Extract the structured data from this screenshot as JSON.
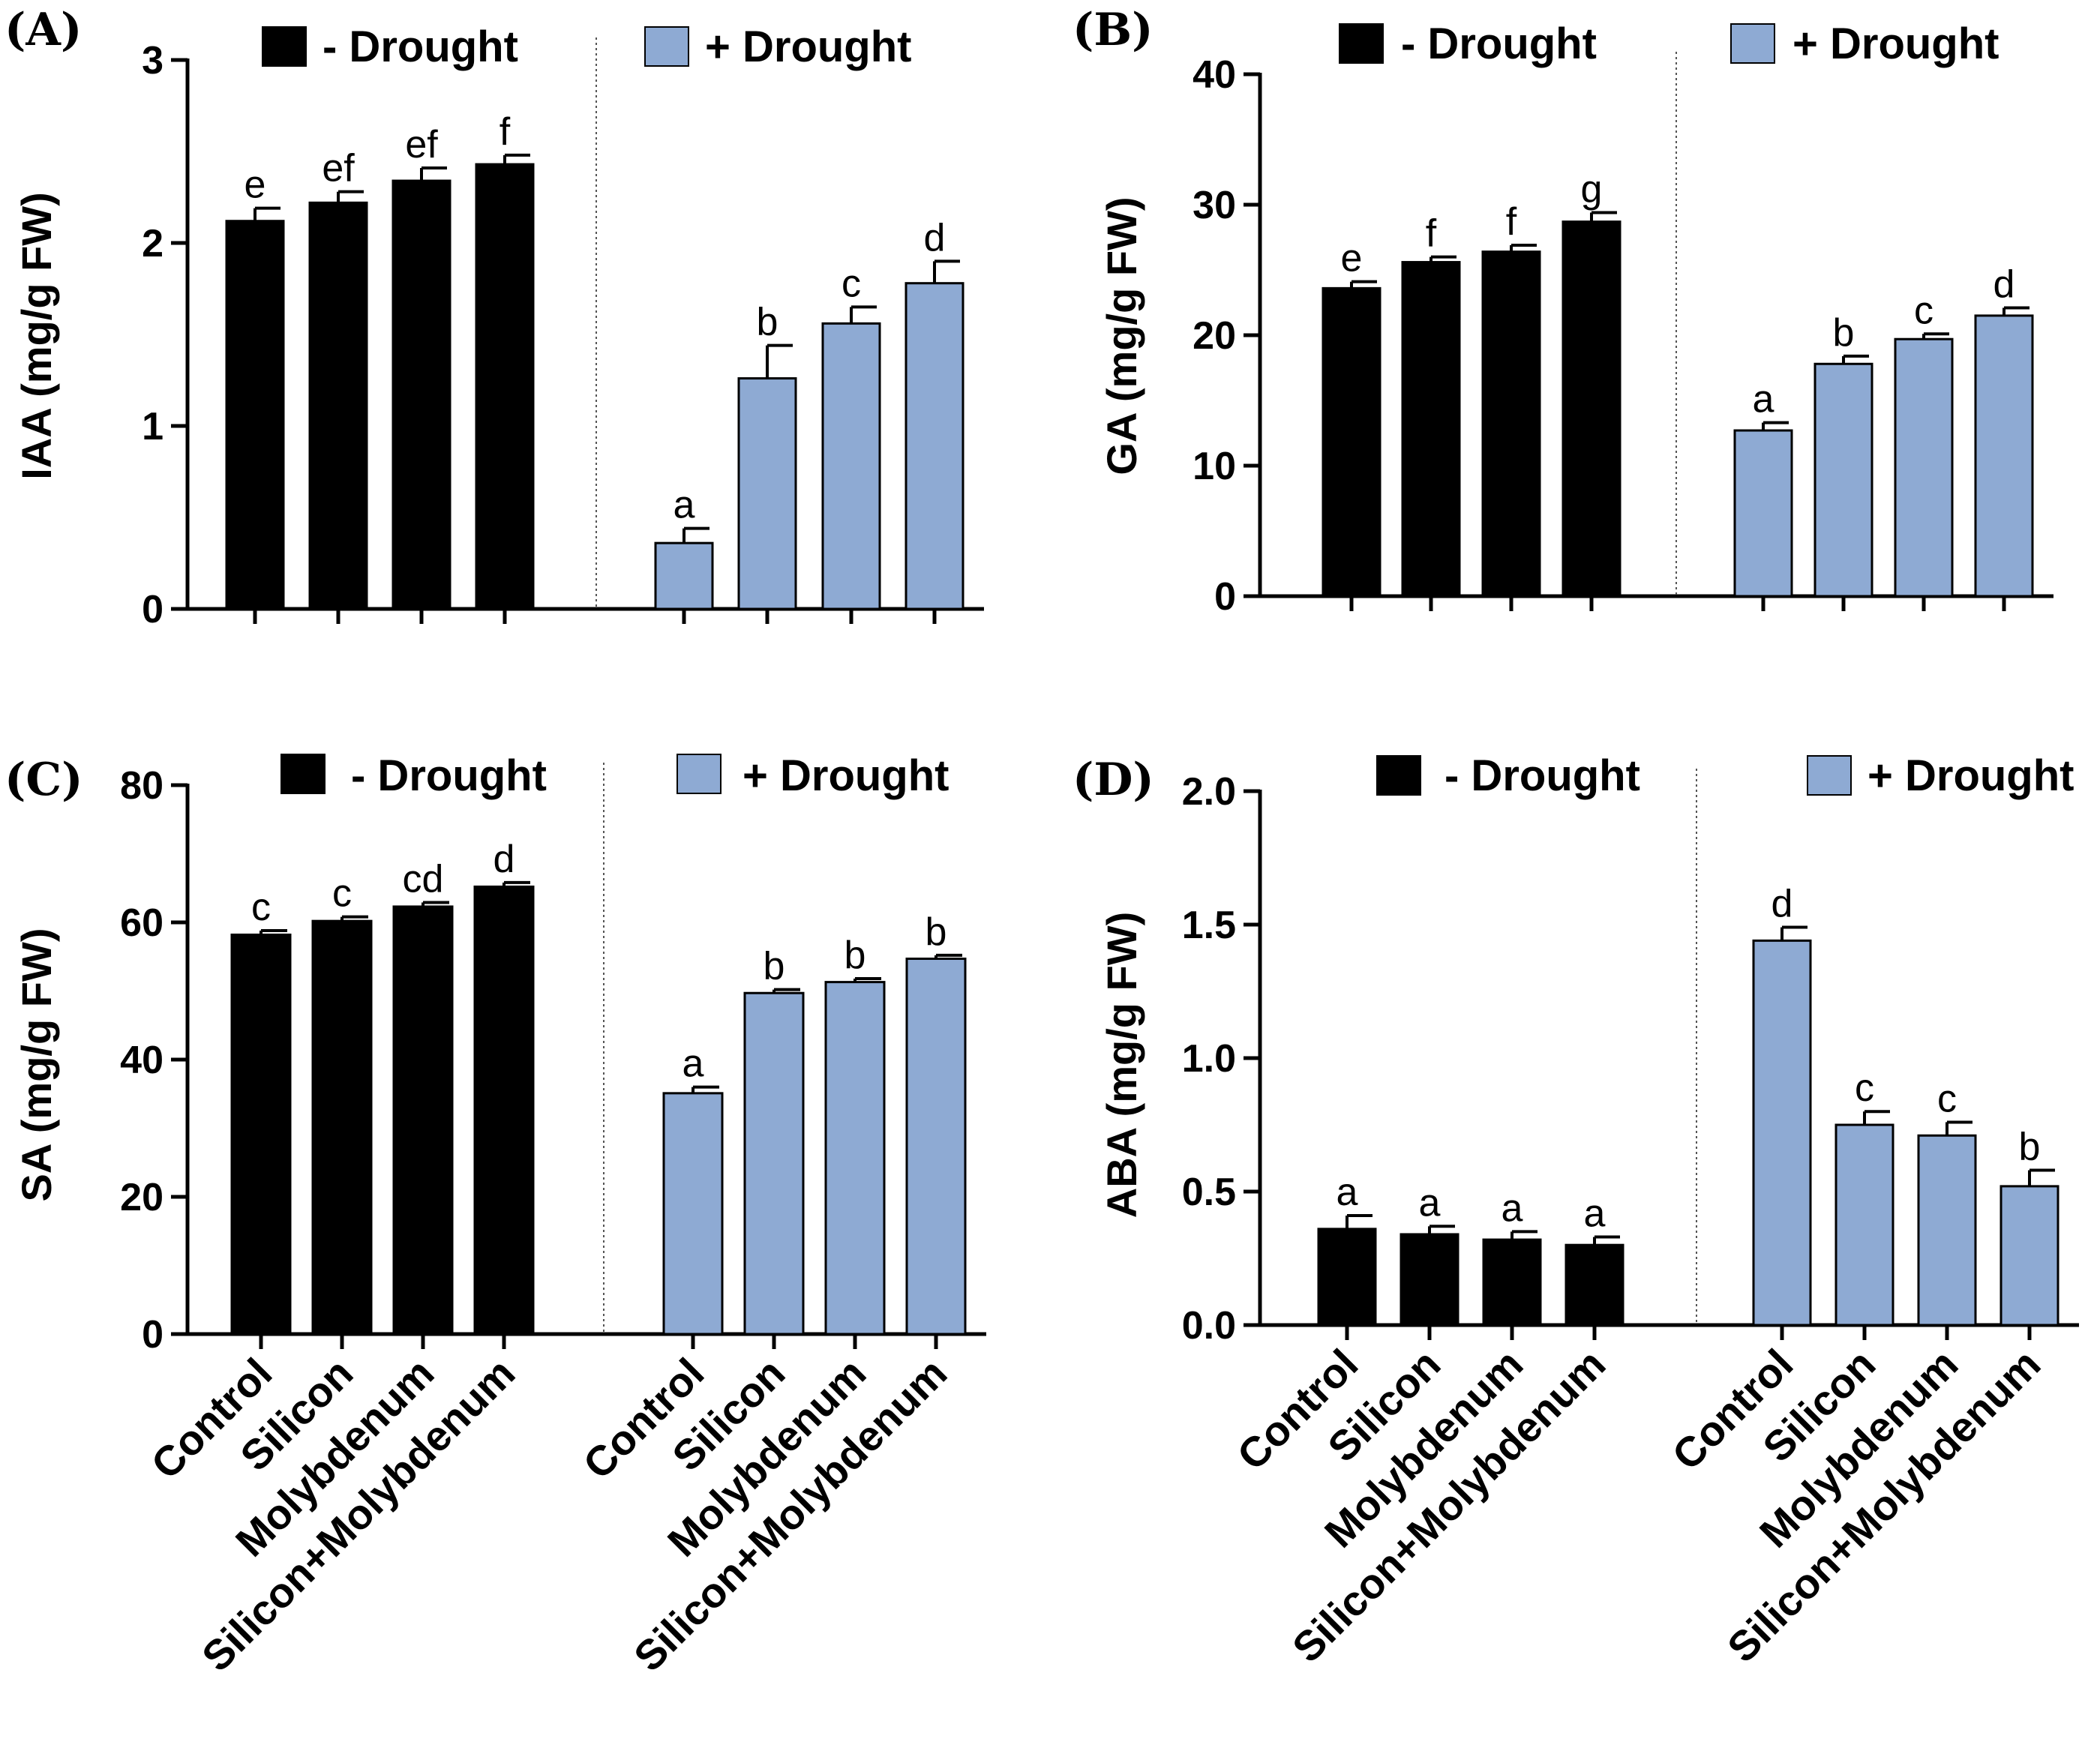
{
  "colors": {
    "minus_drought": "#000000",
    "plus_drought": "#8eaad3",
    "axis": "#000000"
  },
  "chart_data": [
    {
      "panel": "(A)",
      "type": "bar",
      "ylabel": "IAA (mg/g FW)",
      "ylim": [
        0,
        3
      ],
      "yticks": [
        "0",
        "1",
        "2",
        "3"
      ],
      "categories": [
        "Control",
        "Silicon",
        "Molybdenum",
        "Silicon+Molybdenum"
      ],
      "legend": [
        "- Drought",
        "+ Drought"
      ],
      "series": [
        {
          "name": "- Drought",
          "values": [
            2.12,
            2.22,
            2.34,
            2.43
          ],
          "errors": [
            0.07,
            0.06,
            0.07,
            0.05
          ],
          "letters": [
            "e",
            "ef",
            "ef",
            "f"
          ]
        },
        {
          "name": "+ Drought",
          "values": [
            0.36,
            1.26,
            1.56,
            1.78
          ],
          "errors": [
            0.08,
            0.18,
            0.09,
            0.12
          ],
          "letters": [
            "a",
            "b",
            "c",
            "d"
          ]
        }
      ]
    },
    {
      "panel": "(B)",
      "type": "bar",
      "ylabel": "GA (mg/g FW)",
      "ylim": [
        0,
        40
      ],
      "yticks": [
        "0",
        "10",
        "20",
        "30",
        "40"
      ],
      "categories": [
        "Control",
        "Silicon",
        "Molybdenum",
        "Silicon+Molybdenum"
      ],
      "legend": [
        "- Drought",
        "+ Drought"
      ],
      "series": [
        {
          "name": "- Drought",
          "values": [
            23.6,
            25.6,
            26.4,
            28.7
          ],
          "errors": [
            0.5,
            0.4,
            0.5,
            0.7
          ],
          "letters": [
            "e",
            "f",
            "f",
            "g"
          ]
        },
        {
          "name": "+ Drought",
          "values": [
            12.7,
            17.8,
            19.7,
            21.5
          ],
          "errors": [
            0.6,
            0.6,
            0.4,
            0.6
          ],
          "letters": [
            "a",
            "b",
            "c",
            "d"
          ]
        }
      ]
    },
    {
      "panel": "(C)",
      "type": "bar",
      "ylabel": "SA (mg/g FW)",
      "ylim": [
        0,
        80
      ],
      "yticks": [
        "0",
        "20",
        "40",
        "60",
        "80"
      ],
      "categories": [
        "Control",
        "Silicon",
        "Molybdenum",
        "Silicon+Molybdenum"
      ],
      "legend": [
        "- Drought",
        "+ Drought"
      ],
      "series": [
        {
          "name": "- Drought",
          "values": [
            58.2,
            60.2,
            62.3,
            65.2
          ],
          "errors": [
            0.6,
            0.6,
            0.6,
            0.6
          ],
          "letters": [
            "c",
            "c",
            "cd",
            "d"
          ]
        },
        {
          "name": "+ Drought",
          "values": [
            35.1,
            49.7,
            51.3,
            54.7
          ],
          "errors": [
            0.9,
            0.5,
            0.5,
            0.5
          ],
          "letters": [
            "a",
            "b",
            "b",
            "b"
          ]
        }
      ]
    },
    {
      "panel": "(D)",
      "type": "bar",
      "ylabel": "ABA (mg/g FW)",
      "ylim": [
        0,
        2.0
      ],
      "yticks": [
        "0.0",
        "0.5",
        "1.0",
        "1.5",
        "2.0"
      ],
      "categories": [
        "Control",
        "Silicon",
        "Molybdenum",
        "Silicon+Molybdenum"
      ],
      "legend": [
        "- Drought",
        "+ Drought"
      ],
      "series": [
        {
          "name": "- Drought",
          "values": [
            0.36,
            0.34,
            0.32,
            0.3
          ],
          "errors": [
            0.05,
            0.03,
            0.03,
            0.03
          ],
          "letters": [
            "a",
            "a",
            "a",
            "a"
          ]
        },
        {
          "name": "+ Drought",
          "values": [
            1.44,
            0.75,
            0.71,
            0.52
          ],
          "errors": [
            0.05,
            0.05,
            0.05,
            0.06
          ],
          "letters": [
            "d",
            "c",
            "c",
            "b"
          ]
        }
      ]
    }
  ]
}
